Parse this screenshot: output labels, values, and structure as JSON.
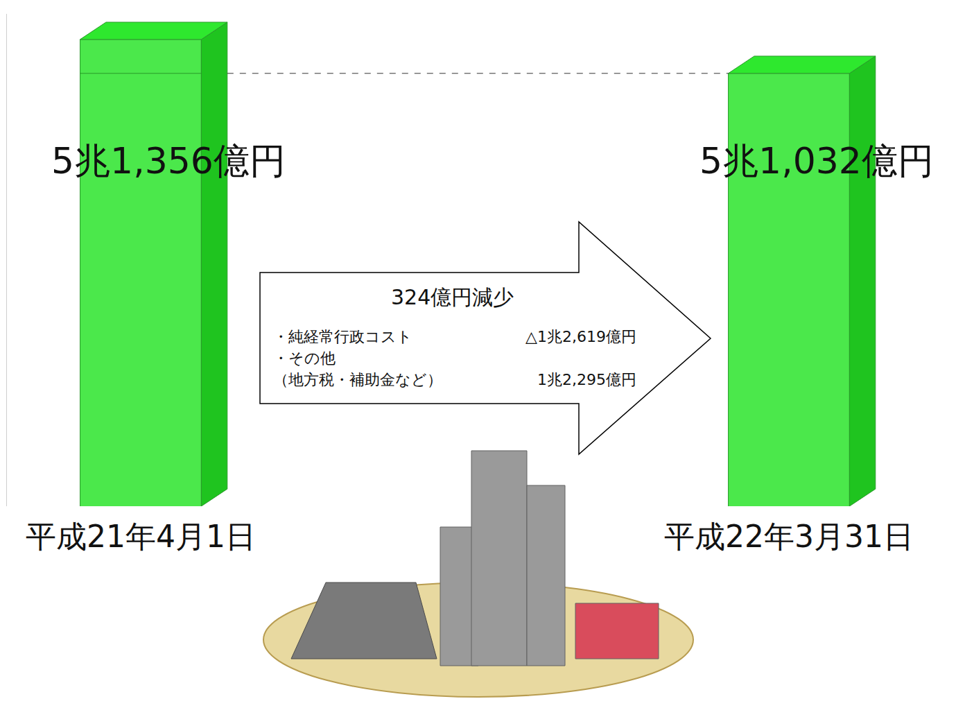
{
  "chart_data": {
    "type": "bar",
    "categories": [
      "平成21年4月1日",
      "平成22年3月31日"
    ],
    "values": [
      51356,
      51032
    ],
    "value_labels": [
      "5兆1,356億円",
      "5兆1,032億円"
    ],
    "data_labels": true,
    "color": "#4be84b",
    "ylim": [
      46900,
      51600
    ],
    "yticks": [],
    "tick_labels": "x",
    "grid": false,
    "annotations": {
      "heading": "324億円減少",
      "rows": [
        {
          "label": [
            "・純経常行政コスト"
          ],
          "amount": "△1兆2,619億円"
        },
        {
          "label": [
            "・その他",
            "（地方税・補助金など）"
          ],
          "amount": "1兆2,295億円"
        }
      ]
    }
  }
}
